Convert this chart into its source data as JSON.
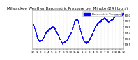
{
  "title": "Milwaukee Weather Barometric Pressure per Minute (24 Hours)",
  "dot_color": "#0000ff",
  "dot_size": 0.3,
  "background_color": "#ffffff",
  "legend_color": "#0000ff",
  "legend_label": "Barometric Pressure",
  "ylim": [
    29.42,
    30.07
  ],
  "xlim": [
    0,
    1440
  ],
  "yticks": [
    29.5,
    29.6,
    29.7,
    29.8,
    29.9,
    30.0
  ],
  "ytick_labels": [
    "29.5",
    "29.6",
    "29.7",
    "29.8",
    "29.9",
    "30.0"
  ],
  "xticks": [
    0,
    60,
    120,
    180,
    240,
    300,
    360,
    420,
    480,
    540,
    600,
    660,
    720,
    780,
    840,
    900,
    960,
    1020,
    1080,
    1140,
    1200,
    1260,
    1320,
    1380,
    1440
  ],
  "xtick_labels": [
    "12",
    "1",
    "2",
    "3",
    "4",
    "5",
    "6",
    "7",
    "8",
    "9",
    "10",
    "11",
    "12",
    "1",
    "2",
    "3",
    "4",
    "5",
    "6",
    "7",
    "8",
    "9",
    "10",
    "11",
    "12"
  ],
  "grid_color": "#bbbbbb",
  "title_fontsize": 4.0,
  "tick_fontsize": 3.0,
  "pressure_keyframes": [
    [
      0,
      29.85
    ],
    [
      72,
      29.6
    ],
    [
      100,
      29.55
    ],
    [
      150,
      29.58
    ],
    [
      200,
      29.7
    ],
    [
      280,
      29.78
    ],
    [
      330,
      29.8
    ],
    [
      400,
      29.65
    ],
    [
      460,
      29.52
    ],
    [
      520,
      29.55
    ],
    [
      580,
      29.65
    ],
    [
      620,
      29.72
    ],
    [
      660,
      29.9
    ],
    [
      700,
      29.93
    ],
    [
      730,
      29.85
    ],
    [
      760,
      29.7
    ],
    [
      800,
      29.58
    ],
    [
      840,
      29.52
    ],
    [
      880,
      29.55
    ],
    [
      920,
      29.62
    ],
    [
      960,
      29.72
    ],
    [
      1020,
      29.85
    ],
    [
      1080,
      29.9
    ],
    [
      1140,
      29.95
    ],
    [
      1200,
      29.88
    ],
    [
      1260,
      29.92
    ],
    [
      1320,
      30.0
    ],
    [
      1380,
      29.98
    ],
    [
      1440,
      30.02
    ]
  ]
}
